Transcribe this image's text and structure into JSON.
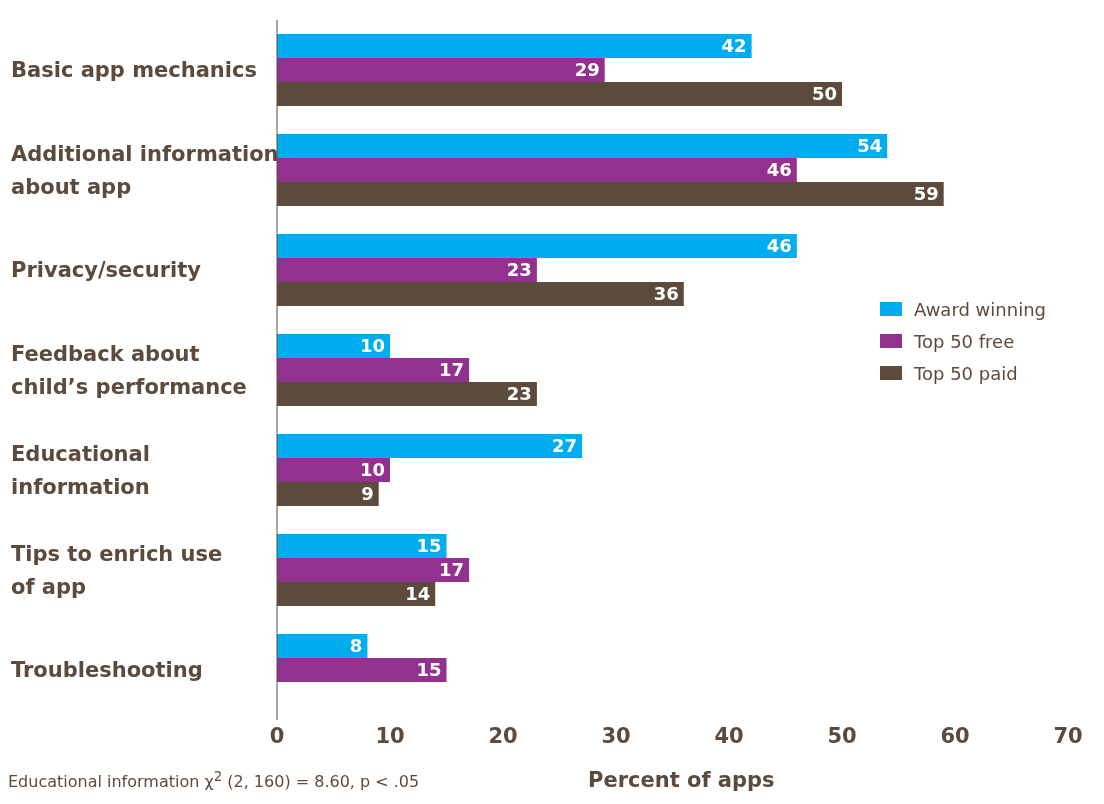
{
  "chart_data": {
    "type": "bar",
    "orientation": "horizontal",
    "categories": [
      "Basic app mechanics",
      "Additional information\nabout app",
      "Privacy/security",
      "Feedback about\nchild’s performance",
      "Educational\ninformation",
      "Tips to enrich use\nof app",
      "Troubleshooting"
    ],
    "series": [
      {
        "name": "Award winning",
        "color": "#00aeef",
        "values": [
          42,
          54,
          46,
          10,
          27,
          15,
          8
        ]
      },
      {
        "name": "Top 50 free",
        "color": "#93328e",
        "values": [
          29,
          46,
          23,
          17,
          10,
          17,
          15
        ]
      },
      {
        "name": "Top 50 paid",
        "color": "#5c4b3c",
        "values": [
          50,
          59,
          36,
          23,
          9,
          14,
          null
        ]
      }
    ],
    "xlim": [
      0,
      70
    ],
    "xticks": [
      0,
      10,
      20,
      30,
      40,
      50,
      60,
      70
    ],
    "xlabel": "Percent of apps",
    "data_labels": true,
    "legend": "right",
    "annotations": [
      "Educational information χ$^{2}$ (2, 160) = 8.60, p < .05"
    ]
  }
}
